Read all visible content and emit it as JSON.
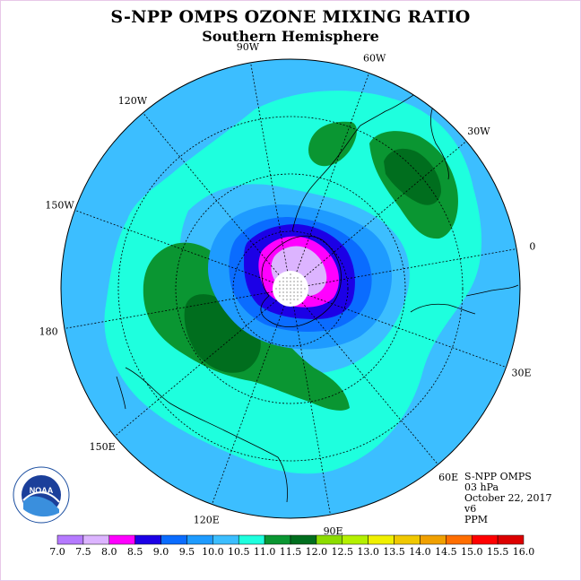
{
  "title": "S-NPP OMPS OZONE MIXING RATIO",
  "subtitle": "Southern Hemisphere",
  "longitude_labels": [
    "90W",
    "60W",
    "30W",
    "0",
    "30E",
    "60E",
    "90E",
    "120E",
    "150E",
    "180",
    "150W",
    "120W"
  ],
  "info": {
    "instrument": "S-NPP OMPS",
    "level": "03 hPa",
    "date": "October 22, 2017",
    "version": "v6",
    "units": "PPM"
  },
  "logo": {
    "text": "NOAA",
    "ring_text": "NATIONAL OCEANIC AND ATMOSPHERIC ADMINISTRATION · U.S. DEPARTMENT OF COMMERCE"
  },
  "colorbar": {
    "labels": [
      "7.0",
      "7.5",
      "8.0",
      "8.5",
      "9.0",
      "9.5",
      "10.0",
      "10.5",
      "11.0",
      "11.5",
      "12.0",
      "12.5",
      "13.0",
      "13.5",
      "14.0",
      "14.5",
      "15.0",
      "15.5",
      "16.0"
    ],
    "colors": [
      "#b57aff",
      "#dcb4ff",
      "#ff00ff",
      "#1c00e6",
      "#0a6cff",
      "#1e9bff",
      "#3cbeff",
      "#1effde",
      "#0a9632",
      "#006e1e",
      "#8cdc00",
      "#b4f000",
      "#f0f000",
      "#f0c800",
      "#f0a000",
      "#ff6e00",
      "#ff0000",
      "#dc0000",
      "#a05028"
    ]
  },
  "colors": {
    "ocean_field": "#3cbeff",
    "band_10_5": "#1effde",
    "band_11_0": "#0a9632",
    "band_11_5": "#006e1e",
    "band_9_5": "#1e9bff",
    "band_9_0": "#0a6cff",
    "band_8_5": "#1c00e6",
    "band_8_0": "#ff00ff",
    "band_7_5": "#dcb4ff"
  }
}
